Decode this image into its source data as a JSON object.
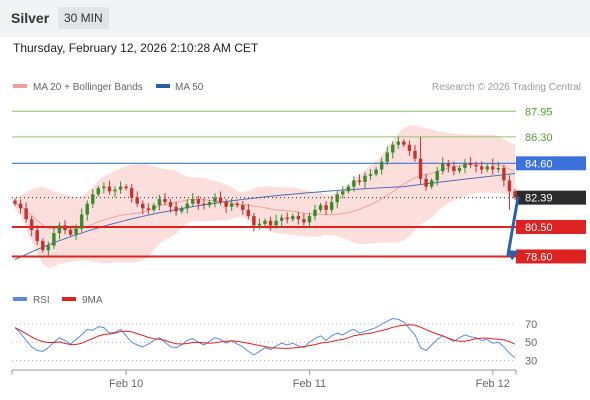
{
  "header": {
    "symbol": "Silver",
    "interval": "30 MIN"
  },
  "datetime": "Thursday, February 12, 2026 2:10:28 AM CET",
  "copyright": "Research © 2026 Trading Central",
  "colors": {
    "up": "#3a8a2e",
    "down": "#c43232",
    "bb_fill": "#fcd9d6",
    "ma20": "#f0a29a",
    "ma50": "#4a6fb5",
    "pivot_blue": "#3d72dc",
    "support_red": "#dd2222",
    "resist_green": "#8cc66b",
    "target_arrow": "#2d5fa8",
    "rsi": "#5a8be0",
    "rsi_ma": "#dd2222"
  },
  "chart_data": [
    {
      "type": "candlestick",
      "legend": [
        {
          "name": "MA 20 + Bollinger Bands",
          "color": "#f0a29a"
        },
        {
          "name": "MA 50",
          "color": "#2d5fa8"
        }
      ],
      "levels": [
        {
          "value": 87.95,
          "label": "87.95",
          "kind": "resistance",
          "color": "#8cc66b"
        },
        {
          "value": 86.3,
          "label": "86.30",
          "kind": "resistance",
          "color": "#8cc66b"
        },
        {
          "value": 84.6,
          "label": "84.60",
          "kind": "pivot",
          "color": "#3d72dc"
        },
        {
          "value": 82.39,
          "label": "82.39",
          "kind": "last-price",
          "color": "#333333"
        },
        {
          "value": 80.5,
          "label": "80.50",
          "kind": "support",
          "color": "#dd2222"
        },
        {
          "value": 78.6,
          "label": "78.60",
          "kind": "support",
          "color": "#dd2222"
        }
      ],
      "yrange": [
        77.6,
        89.0
      ],
      "x_ticks": [
        {
          "label": "Feb 10",
          "index": 20
        },
        {
          "label": "Feb 11",
          "index": 53
        },
        {
          "label": "Feb 12",
          "index": 86
        }
      ],
      "closes": [
        82.0,
        81.7,
        81.0,
        80.3,
        79.6,
        79.0,
        79.3,
        80.1,
        80.6,
        80.3,
        80.0,
        80.4,
        81.3,
        82.0,
        82.6,
        83.0,
        83.1,
        82.8,
        82.9,
        83.1,
        83.0,
        82.4,
        82.0,
        81.7,
        81.6,
        81.9,
        82.3,
        82.1,
        81.8,
        81.5,
        81.7,
        82.0,
        82.3,
        82.0,
        81.9,
        82.1,
        82.4,
        82.1,
        81.8,
        82.0,
        81.9,
        81.6,
        81.2,
        80.6,
        80.7,
        80.9,
        80.6,
        80.9,
        81.1,
        81.0,
        81.2,
        81.0,
        80.8,
        81.2,
        81.6,
        81.9,
        81.6,
        82.1,
        82.6,
        82.8,
        83.1,
        83.5,
        83.4,
        83.8,
        83.9,
        84.2,
        84.7,
        85.3,
        85.8,
        86.0,
        85.8,
        85.4,
        84.9,
        83.6,
        83.1,
        83.5,
        84.1,
        84.6,
        84.4,
        84.1,
        84.3,
        84.6,
        84.5,
        84.4,
        84.2,
        84.4,
        84.2,
        84.3,
        83.5,
        82.8,
        82.39
      ],
      "trend_arrow": {
        "from_index": 90,
        "from_value": 82.39,
        "to_value": 78.6
      },
      "rsi": {
        "legend": [
          {
            "name": "RSI",
            "color": "#5a8be0"
          },
          {
            "name": "9MA",
            "color": "#dd2222"
          }
        ],
        "ticks": [
          30,
          50,
          70
        ],
        "yrange": [
          24,
          82
        ],
        "values": [
          66,
          60,
          52,
          45,
          41,
          40,
          44,
          50,
          55,
          52,
          48,
          53,
          58,
          64,
          63,
          67,
          66,
          60,
          61,
          64,
          57,
          50,
          47,
          45,
          48,
          52,
          55,
          50,
          45,
          44,
          47,
          52,
          54,
          50,
          47,
          51,
          55,
          53,
          49,
          52,
          48,
          45,
          40,
          36,
          40,
          44,
          42,
          46,
          49,
          47,
          49,
          46,
          44,
          50,
          54,
          57,
          52,
          57,
          60,
          58,
          62,
          64,
          60,
          62,
          64,
          66,
          70,
          73,
          76,
          75,
          72,
          65,
          58,
          44,
          41,
          47,
          53,
          57,
          54,
          51,
          55,
          58,
          56,
          55,
          52,
          53,
          49,
          50,
          45,
          38,
          33
        ]
      }
    }
  ]
}
